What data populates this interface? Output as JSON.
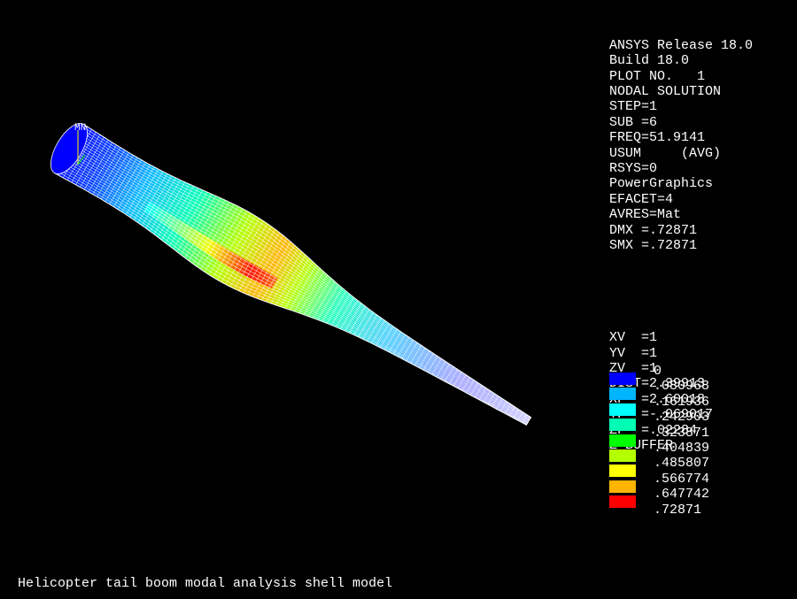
{
  "header": {
    "lines_top": [
      "ANSYS Release 18.0",
      "Build 18.0",
      "PLOT NO.   1",
      "NODAL SOLUTION",
      "STEP=1",
      "SUB =6",
      "FREQ=51.9141",
      "USUM     (AVG)",
      "RSYS=0",
      "PowerGraphics",
      "EFACET=4",
      "AVRES=Mat",
      "DMX =.72871",
      "SMX =.72871"
    ],
    "lines_view": [
      "XV  =1",
      "YV  =1",
      "ZV  =1",
      "DIST=2.39913",
      "XF  =2.60018",
      "YF  =-.069017",
      "ZF  =.02284",
      "Z-BUFFER"
    ]
  },
  "legend": {
    "labels": [
      "0",
      ".080968",
      ".161936",
      ".242903",
      ".323871",
      ".404839",
      ".485807",
      ".566774",
      ".647742",
      ".72871"
    ],
    "colors": [
      "#0000ff",
      "#00b4ff",
      "#00ffff",
      "#00ffb4",
      "#00ff00",
      "#b4ff00",
      "#ffff00",
      "#ffb400",
      "#ff0000"
    ]
  },
  "viewport": {
    "marker_label": "MN",
    "mesh_color": "#ffffff",
    "background": "#000000"
  },
  "caption": "Helicopter tail boom modal analysis shell model"
}
